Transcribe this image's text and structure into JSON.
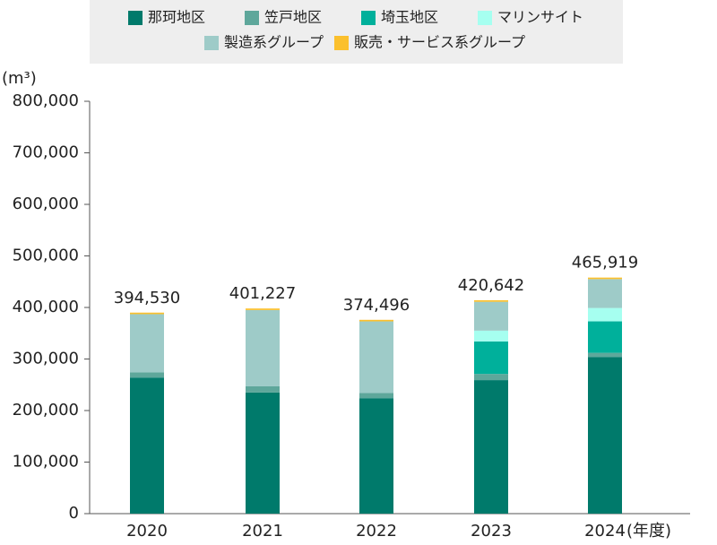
{
  "chart_data": {
    "type": "stacked-bar",
    "y_axis_label": "(m³)",
    "x_axis_label": "(年度)",
    "categories": [
      "2020",
      "2021",
      "2022",
      "2023",
      "2024"
    ],
    "series": [
      {
        "name": "那珂地区",
        "color": "#007a6b",
        "values": [
          264000,
          235000,
          224000,
          259000,
          304000
        ]
      },
      {
        "name": "笠戸地区",
        "color": "#5ea79b",
        "values": [
          10000,
          12000,
          10000,
          12000,
          8000
        ]
      },
      {
        "name": "埼玉地区",
        "color": "#00b09b",
        "values": [
          0,
          0,
          0,
          63000,
          61000
        ]
      },
      {
        "name": "マリンサイト",
        "color": "#a6fff0",
        "values": [
          0,
          0,
          0,
          21000,
          26000
        ]
      },
      {
        "name": "製造系グループ",
        "color": "#9ecbc8",
        "values": [
          113000,
          148000,
          139000,
          56000,
          56000
        ]
      },
      {
        "name": "販売・サービス系グループ",
        "color": "#fbc02d",
        "values": [
          3000,
          3000,
          3000,
          3000,
          3000
        ]
      }
    ],
    "totals": [
      {
        "value": 394530,
        "label": "394,530"
      },
      {
        "value": 401227,
        "label": "401,227"
      },
      {
        "value": 374496,
        "label": "374,496"
      },
      {
        "value": 420642,
        "label": "420,642"
      },
      {
        "value": 465919,
        "label": "465,919"
      }
    ],
    "ylim": [
      0,
      800000
    ],
    "yticks": [
      0,
      {
        "value": 100000,
        "label": "100,000"
      },
      {
        "value": 200000,
        "label": "200,000"
      },
      {
        "value": 300000,
        "label": "300,000"
      },
      {
        "value": 400000,
        "label": "400,000"
      },
      {
        "value": 500000,
        "label": "500,000"
      },
      {
        "value": 600000,
        "label": "600,000"
      },
      {
        "value": 700000,
        "label": "700,000"
      },
      {
        "value": 800000,
        "label": "800,000"
      }
    ]
  }
}
